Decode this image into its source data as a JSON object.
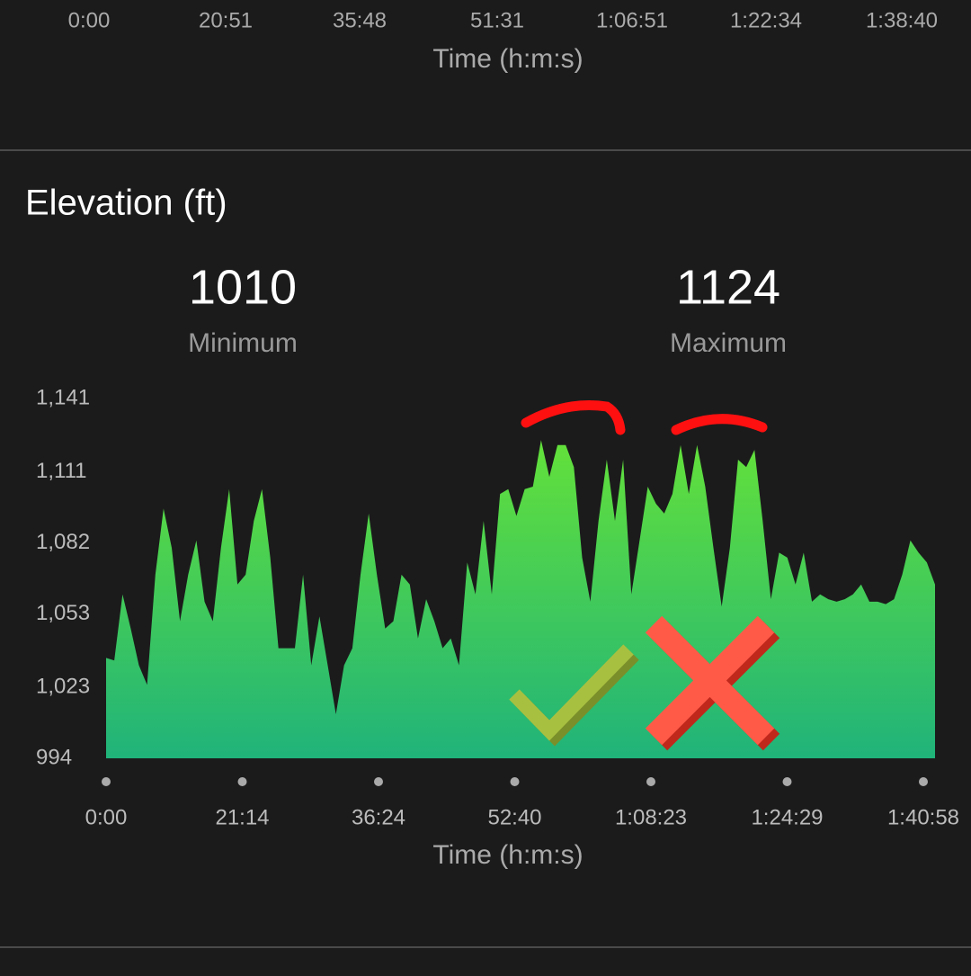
{
  "previous_chart": {
    "xtick_labels": [
      "0:00",
      "20:51",
      "35:48",
      "51:31",
      "1:06:51",
      "1:22:34",
      "1:38:40"
    ],
    "xlabel": "Time (h:m:s)"
  },
  "chart_data": {
    "type": "area",
    "title": "Elevation (ft)",
    "stats": [
      {
        "value": 1010,
        "label": "Minimum"
      },
      {
        "value": 1124,
        "label": "Maximum"
      }
    ],
    "ylim": [
      994,
      1141
    ],
    "yticks": [
      994,
      {
        "value": 1023,
        "label": "1,023"
      },
      {
        "value": 1053,
        "label": "1,053"
      },
      {
        "value": 1082,
        "label": "1,082"
      },
      {
        "value": 1111,
        "label": "1,111"
      },
      {
        "value": 1141,
        "label": "1,141"
      }
    ],
    "xtick_labels": [
      "0:00",
      "21:14",
      "36:24",
      "52:40",
      "1:08:23",
      "1:24:29",
      "1:40:58"
    ],
    "xlabel": "Time (h:m:s)",
    "colors": [
      "#63e13a",
      "#20b37a"
    ],
    "values": [
      1035,
      1034,
      1061,
      1047,
      1032,
      1024,
      1069,
      1096,
      1080,
      1050,
      1069,
      1083,
      1058,
      1050,
      1080,
      1104,
      1065,
      1069,
      1091,
      1104,
      1076,
      1039,
      1039,
      1039,
      1069,
      1032,
      1052,
      1032,
      1012,
      1032,
      1039,
      1069,
      1094,
      1069,
      1047,
      1050,
      1069,
      1065,
      1043,
      1059,
      1050,
      1039,
      1043,
      1032,
      1074,
      1061,
      1091,
      1061,
      1102,
      1104,
      1093,
      1104,
      1105,
      1124,
      1109,
      1122,
      1122,
      1113,
      1076,
      1058,
      1091,
      1116,
      1091,
      1116,
      1061,
      1083,
      1105,
      1098,
      1094,
      1102,
      1122,
      1102,
      1122,
      1105,
      1080,
      1056,
      1080,
      1116,
      1113,
      1120,
      1091,
      1059,
      1078,
      1076,
      1065,
      1078,
      1058,
      1061,
      1059,
      1058,
      1059,
      1061,
      1065,
      1058,
      1058,
      1057,
      1059,
      1069,
      1083,
      1078,
      1074,
      1065
    ]
  }
}
